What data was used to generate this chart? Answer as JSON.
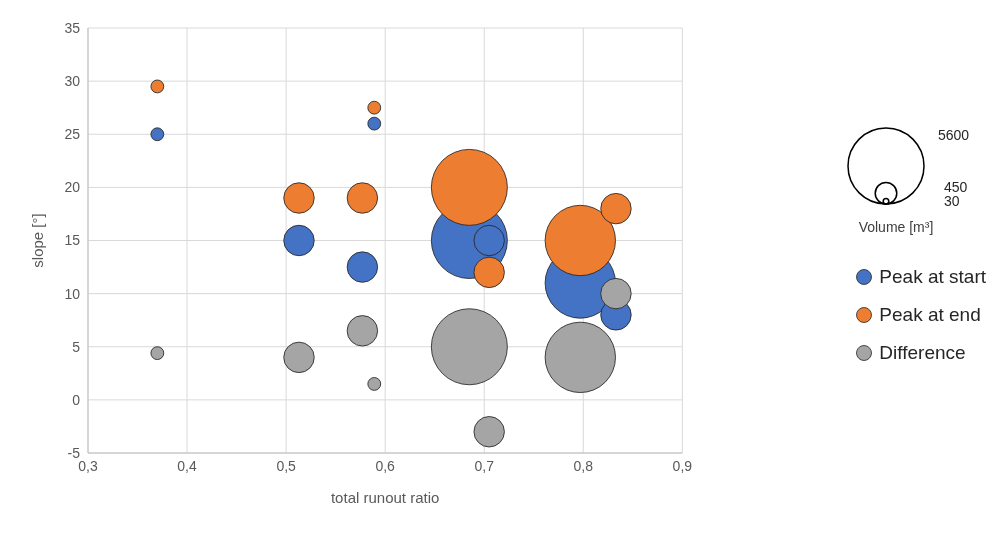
{
  "chart_data": {
    "type": "bubble",
    "xlabel": "total runout ratio",
    "ylabel": "slope [°]",
    "legend_title": "Volume [m³]",
    "xlim": [
      0.3,
      0.9
    ],
    "xticks": [
      {
        "value": 0.3,
        "label": "0,3"
      },
      {
        "value": 0.4,
        "label": "0,4"
      },
      {
        "value": 0.5,
        "label": "0,5"
      },
      {
        "value": 0.6,
        "label": "0,6"
      },
      {
        "value": 0.7,
        "label": "0,7"
      },
      {
        "value": 0.8,
        "label": "0,8"
      },
      {
        "value": 0.9,
        "label": "0,9"
      }
    ],
    "ylim": [
      -5,
      35
    ],
    "yticks": [
      -5,
      0,
      5,
      10,
      15,
      20,
      25,
      30,
      35
    ],
    "grid": true,
    "legend": "right",
    "size_legend": [
      5600,
      450,
      30
    ],
    "series": [
      {
        "name": "Peak at start",
        "color": "#4472c4",
        "x": [
          0.37,
          0.513,
          0.577,
          0.589,
          0.685,
          0.705,
          0.797,
          0.833
        ],
        "values": [
          25,
          15,
          12.5,
          26,
          15,
          15,
          11,
          8
        ],
        "sizes": [
          160,
          900,
          900,
          160,
          5600,
          900,
          4800,
          900
        ]
      },
      {
        "name": "Peak at end",
        "color": "#ed7d31",
        "x": [
          0.37,
          0.513,
          0.577,
          0.589,
          0.685,
          0.705,
          0.797,
          0.833
        ],
        "values": [
          29.5,
          19,
          19,
          27.5,
          20,
          12,
          15,
          18
        ],
        "sizes": [
          160,
          900,
          900,
          160,
          5600,
          900,
          4800,
          900
        ]
      },
      {
        "name": "Difference",
        "color": "#a5a5a5",
        "x": [
          0.37,
          0.513,
          0.577,
          0.589,
          0.685,
          0.705,
          0.797,
          0.833
        ],
        "values": [
          4.4,
          4,
          6.5,
          1.5,
          5,
          -3,
          4,
          10
        ],
        "sizes": [
          160,
          900,
          900,
          160,
          5600,
          900,
          4800,
          900
        ]
      }
    ]
  }
}
